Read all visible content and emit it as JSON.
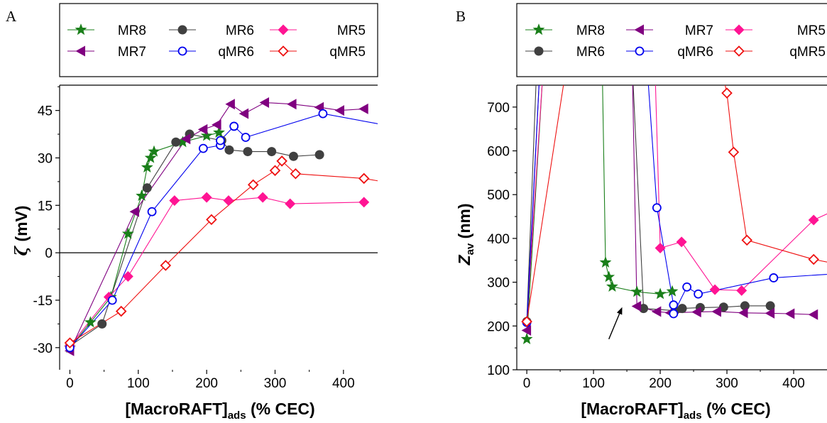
{
  "chart_data": [
    {
      "type": "scatter",
      "panel_label": "A",
      "xlabel_main": "[MacroRAFT]",
      "xlabel_sub": "ads",
      "xlabel_tail": " (% CEC)",
      "ylabel_symbol": "ζ",
      "ylabel_tail": " (mV)",
      "xlim": [
        -15,
        450
      ],
      "ylim": [
        -37,
        53
      ],
      "xticks": [
        0,
        100,
        200,
        300,
        400
      ],
      "yticks": [
        -30,
        -15,
        0,
        15,
        30,
        45
      ],
      "zero_line": true,
      "legend": [
        {
          "name": "MR8",
          "marker": "star",
          "color": "#1a7f1a"
        },
        {
          "name": "MR6",
          "marker": "circle",
          "color": "#404040"
        },
        {
          "name": "MR5",
          "marker": "diamond",
          "color": "#ff1493"
        },
        {
          "name": "MR7",
          "marker": "triangle-left",
          "color": "#800080"
        },
        {
          "name": "qMR6",
          "marker": "circle-open",
          "color": "#0000ee"
        },
        {
          "name": "qMR5",
          "marker": "diamond-open",
          "color": "#ee1111"
        }
      ],
      "series": [
        {
          "name": "MR8",
          "x": [
            0,
            30,
            60,
            85,
            105,
            113,
            118,
            123,
            165,
            200,
            218
          ],
          "y": [
            -30,
            -22,
            -14,
            6,
            18,
            27,
            30,
            32,
            35,
            37,
            38
          ]
        },
        {
          "name": "MR6",
          "x": [
            0,
            47,
            113,
            155,
            175,
            222,
            233,
            260,
            295,
            327,
            365
          ],
          "y": [
            -29.5,
            -22.5,
            20.5,
            35,
            37.5,
            35.5,
            32.5,
            32,
            32,
            30.5,
            31
          ]
        },
        {
          "name": "MR5",
          "x": [
            0,
            57,
            85,
            153,
            200,
            232,
            282,
            322,
            430
          ],
          "y": [
            -29.5,
            -14,
            -7.5,
            16.5,
            17.5,
            16.5,
            17.5,
            15.5,
            16
          ]
        },
        {
          "name": "MR7",
          "x": [
            0,
            95,
            170,
            195,
            215,
            235,
            255,
            285,
            325,
            365,
            395,
            430
          ],
          "y": [
            -31,
            13,
            36,
            39,
            40.5,
            47,
            44,
            47.5,
            47,
            46,
            45,
            45.5
          ]
        },
        {
          "name": "qMR6",
          "x": [
            0,
            62,
            120,
            195,
            220,
            220,
            240,
            257,
            370,
            470
          ],
          "y": [
            -30,
            -15,
            13,
            33,
            34,
            35.5,
            40,
            36.5,
            44,
            40
          ]
        },
        {
          "name": "qMR5",
          "x": [
            0,
            75,
            140,
            207,
            268,
            300,
            310,
            330,
            430,
            470
          ],
          "y": [
            -28.5,
            -18.5,
            -4,
            10.5,
            21.5,
            26,
            29,
            25,
            23.5,
            22
          ]
        }
      ]
    },
    {
      "type": "scatter",
      "panel_label": "B",
      "xlabel_main": "[MacroRAFT]",
      "xlabel_sub": "ads",
      "xlabel_tail": " (% CEC)",
      "ylabel_symbol": "Z",
      "ylabel_sub": "av",
      "ylabel_tail": " (nm)",
      "xlim": [
        -15,
        450
      ],
      "ylim": [
        100,
        750
      ],
      "xticks": [
        0,
        100,
        200,
        300,
        400
      ],
      "yticks": [
        100,
        200,
        300,
        400,
        500,
        600,
        700
      ],
      "arrow": {
        "from": [
          123,
          170
        ],
        "to": [
          143,
          243
        ]
      },
      "legend": [
        {
          "name": "MR8",
          "marker": "star",
          "color": "#1a7f1a"
        },
        {
          "name": "MR7",
          "marker": "triangle-left",
          "color": "#800080"
        },
        {
          "name": "MR5",
          "marker": "diamond",
          "color": "#ff1493"
        },
        {
          "name": "MR6",
          "marker": "circle",
          "color": "#404040"
        },
        {
          "name": "qMR6",
          "marker": "circle-open",
          "color": "#0000ee"
        },
        {
          "name": "qMR5",
          "marker": "diamond-open",
          "color": "#ee1111"
        }
      ],
      "series": [
        {
          "name": "MR8",
          "x": [
            0,
            25,
            113,
            118,
            123,
            128,
            165,
            200,
            218
          ],
          "y": [
            170,
            800,
            800,
            345,
            312,
            290,
            278,
            273,
            279
          ]
        },
        {
          "name": "MR6",
          "x": [
            0,
            15,
            158,
            175,
            222,
            233,
            260,
            295,
            327,
            365
          ],
          "y": [
            210,
            800,
            800,
            240,
            235,
            240,
            242,
            243,
            246,
            246
          ]
        },
        {
          "name": "MR5",
          "x": [
            0,
            25,
            192,
            200,
            232,
            282,
            322,
            430,
            470
          ],
          "y": [
            210,
            800,
            800,
            378,
            392,
            283,
            281,
            442,
            470
          ]
        },
        {
          "name": "MR7",
          "x": [
            0,
            20,
            158,
            165,
            195,
            215,
            255,
            285,
            325,
            365,
            395,
            430
          ],
          "y": [
            190,
            800,
            800,
            245,
            233,
            230,
            232,
            233,
            230,
            229,
            228,
            226
          ]
        },
        {
          "name": "qMR6",
          "x": [
            0,
            20,
            180,
            195,
            220,
            220,
            240,
            257,
            370,
            470
          ],
          "y": [
            208,
            800,
            800,
            470,
            248,
            228,
            289,
            273,
            310,
            320
          ]
        },
        {
          "name": "qMR5",
          "x": [
            0,
            60,
            290,
            300,
            310,
            330,
            430,
            470
          ],
          "y": [
            210,
            800,
            800,
            732,
            597,
            396,
            352,
            340
          ]
        }
      ]
    }
  ]
}
